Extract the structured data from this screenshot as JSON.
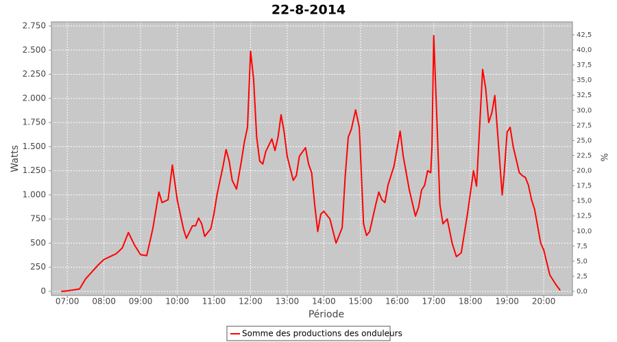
{
  "chart_data": {
    "type": "line",
    "title": "22-8-2014",
    "x_label": "Période",
    "y_label": "Watts",
    "y2_label": "%",
    "x": [
      "06:50",
      "07:00",
      "07:10",
      "07:20",
      "07:30",
      "07:40",
      "07:50",
      "08:00",
      "08:10",
      "08:20",
      "08:30",
      "08:40",
      "08:50",
      "09:00",
      "09:10",
      "09:20",
      "09:30",
      "09:35",
      "09:45",
      "09:52",
      "10:00",
      "10:10",
      "10:15",
      "10:25",
      "10:30",
      "10:35",
      "10:40",
      "10:45",
      "10:55",
      "11:00",
      "11:05",
      "11:15",
      "11:20",
      "11:25",
      "11:30",
      "11:37",
      "11:45",
      "11:50",
      "11:55",
      "12:00",
      "12:05",
      "12:10",
      "12:15",
      "12:20",
      "12:25",
      "12:35",
      "12:40",
      "12:45",
      "12:50",
      "12:55",
      "13:00",
      "13:10",
      "13:15",
      "13:20",
      "13:30",
      "13:35",
      "13:40",
      "13:45",
      "13:50",
      "13:55",
      "14:00",
      "14:10",
      "14:20",
      "14:30",
      "14:35",
      "14:40",
      "14:45",
      "14:52",
      "14:58",
      "15:05",
      "15:10",
      "15:15",
      "15:25",
      "15:30",
      "15:35",
      "15:40",
      "15:45",
      "15:55",
      "16:05",
      "16:10",
      "16:20",
      "16:30",
      "16:35",
      "16:40",
      "16:45",
      "16:50",
      "16:55",
      "16:57",
      "17:00",
      "17:05",
      "17:10",
      "17:15",
      "17:22",
      "17:30",
      "17:37",
      "17:45",
      "17:55",
      "18:05",
      "18:10",
      "18:15",
      "18:20",
      "18:25",
      "18:30",
      "18:35",
      "18:40",
      "18:45",
      "18:52",
      "18:55",
      "19:00",
      "19:05",
      "19:10",
      "19:20",
      "19:25",
      "19:30",
      "19:35",
      "19:40",
      "19:45",
      "19:55",
      "20:00",
      "20:10",
      "20:20",
      "20:27"
    ],
    "series": [
      {
        "name": "Somme des productions des onduleurs",
        "color": "#ff0000",
        "values": [
          0,
          5,
          15,
          25,
          130,
          200,
          270,
          330,
          360,
          390,
          450,
          610,
          480,
          380,
          370,
          650,
          1030,
          920,
          950,
          1310,
          950,
          650,
          550,
          680,
          680,
          760,
          700,
          570,
          650,
          800,
          1000,
          1300,
          1470,
          1350,
          1150,
          1060,
          1350,
          1550,
          1700,
          2490,
          2200,
          1600,
          1350,
          1320,
          1450,
          1580,
          1460,
          1600,
          1830,
          1650,
          1400,
          1150,
          1200,
          1400,
          1490,
          1320,
          1230,
          900,
          620,
          800,
          830,
          750,
          500,
          660,
          1200,
          1600,
          1680,
          1880,
          1700,
          700,
          580,
          620,
          900,
          1030,
          950,
          920,
          1100,
          1300,
          1660,
          1400,
          1050,
          780,
          870,
          1050,
          1100,
          1250,
          1230,
          1500,
          2650,
          1800,
          900,
          700,
          750,
          500,
          360,
          400,
          800,
          1250,
          1090,
          1700,
          2300,
          2100,
          1750,
          1850,
          2030,
          1600,
          1000,
          1200,
          1650,
          1700,
          1500,
          1230,
          1200,
          1180,
          1100,
          950,
          850,
          500,
          430,
          170,
          70,
          10
        ]
      }
    ],
    "xlim": [
      "06:34",
      "20:47"
    ],
    "xticks": [
      "07:00",
      "08:00",
      "09:00",
      "10:00",
      "11:00",
      "12:00",
      "13:00",
      "14:00",
      "15:00",
      "16:00",
      "17:00",
      "18:00",
      "19:00",
      "20:00"
    ],
    "ylim": [
      -42.5,
      2792.5
    ],
    "yticks": [
      0,
      250,
      500,
      750,
      {
        "value": 1000,
        "label": "1.000"
      },
      {
        "value": 1250,
        "label": "1.250"
      },
      {
        "value": 1500,
        "label": "1.500"
      },
      {
        "value": 1750,
        "label": "1.750"
      },
      {
        "value": 2000,
        "label": "2.000"
      },
      {
        "value": 2250,
        "label": "2.250"
      },
      {
        "value": 2500,
        "label": "2.500"
      },
      {
        "value": 2750,
        "label": "2.750"
      }
    ],
    "y2lim": [
      -0.68,
      44.65
    ],
    "y2ticks": [
      {
        "value": 0,
        "label": "0,0"
      },
      {
        "value": 2.5,
        "label": "2,5"
      },
      {
        "value": 5,
        "label": "5,0"
      },
      {
        "value": 7.5,
        "label": "7,5"
      },
      {
        "value": 10,
        "label": "10,0"
      },
      {
        "value": 12.5,
        "label": "12,5"
      },
      {
        "value": 15,
        "label": "15,0"
      },
      {
        "value": 17.5,
        "label": "17,5"
      },
      {
        "value": 20,
        "label": "20,0"
      },
      {
        "value": 22.5,
        "label": "22,5"
      },
      {
        "value": 25,
        "label": "25,0"
      },
      {
        "value": 27.5,
        "label": "27,5"
      },
      {
        "value": 30,
        "label": "30,0"
      },
      {
        "value": 32.5,
        "label": "32,5"
      },
      {
        "value": 35,
        "label": "35,0"
      },
      {
        "value": 37.5,
        "label": "37,5"
      },
      {
        "value": 40,
        "label": "40,0"
      },
      {
        "value": 42.5,
        "label": "42,5"
      }
    ],
    "grid": true,
    "legend": "bottom"
  }
}
